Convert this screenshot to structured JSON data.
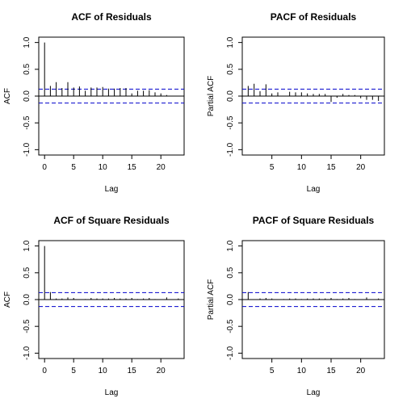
{
  "chart_data": [
    {
      "type": "bar",
      "title": "ACF of Residuals",
      "xlabel": "Lag",
      "ylabel": "ACF",
      "x": [
        0,
        1,
        2,
        3,
        4,
        5,
        6,
        7,
        8,
        9,
        10,
        11,
        12,
        13,
        14,
        15,
        16,
        17,
        18,
        19,
        20,
        21,
        22,
        23
      ],
      "values": [
        1.0,
        0.19,
        0.26,
        0.15,
        0.26,
        0.16,
        0.18,
        0.1,
        0.16,
        0.16,
        0.17,
        0.14,
        0.14,
        0.15,
        0.15,
        0.05,
        0.1,
        0.1,
        0.11,
        0.07,
        0.05,
        0.02,
        0.0,
        0.0
      ],
      "xlim": [
        -1,
        24
      ],
      "ylim": [
        -1.1,
        1.1
      ],
      "xticks": [
        0,
        5,
        10,
        15,
        20
      ],
      "yticks": [
        "-1.0",
        "-0.5",
        "0.0",
        "0.5",
        "1.0"
      ],
      "confidence_bound": 0.13,
      "grid": false
    },
    {
      "type": "bar",
      "title": "PACF of Residuals",
      "xlabel": "Lag",
      "ylabel": "Partial ACF",
      "x": [
        1,
        2,
        3,
        4,
        5,
        6,
        7,
        8,
        9,
        10,
        11,
        12,
        13,
        14,
        15,
        16,
        17,
        18,
        19,
        20,
        21,
        22,
        23
      ],
      "values": [
        0.19,
        0.23,
        0.09,
        0.22,
        0.05,
        0.07,
        0.0,
        0.08,
        0.07,
        0.07,
        0.05,
        0.04,
        0.04,
        0.04,
        -0.11,
        -0.03,
        0.04,
        0.02,
        0.02,
        -0.04,
        -0.07,
        -0.07,
        -0.09
      ],
      "xlim": [
        0,
        24
      ],
      "ylim": [
        -1.1,
        1.1
      ],
      "xticks": [
        5,
        10,
        15,
        20
      ],
      "yticks": [
        "-1.0",
        "-0.5",
        "0.0",
        "0.5",
        "1.0"
      ],
      "confidence_bound": 0.13,
      "grid": false
    },
    {
      "type": "bar",
      "title": "ACF of Square Residuals",
      "xlabel": "Lag",
      "ylabel": "ACF",
      "x": [
        0,
        1,
        2,
        3,
        4,
        5,
        6,
        7,
        8,
        9,
        10,
        11,
        12,
        13,
        14,
        15,
        16,
        17,
        18,
        19,
        20,
        21,
        22,
        23
      ],
      "values": [
        1.0,
        0.14,
        0.02,
        0.02,
        0.04,
        0.03,
        0.0,
        0.01,
        0.03,
        0.02,
        0.02,
        0.02,
        0.03,
        0.02,
        0.02,
        0.03,
        0.01,
        0.02,
        0.03,
        0.01,
        0.0,
        0.04,
        0.0,
        0.02
      ],
      "xlim": [
        -1,
        24
      ],
      "ylim": [
        -1.1,
        1.1
      ],
      "xticks": [
        0,
        5,
        10,
        15,
        20
      ],
      "yticks": [
        "-1.0",
        "-0.5",
        "0.0",
        "0.5",
        "1.0"
      ],
      "confidence_bound": 0.13,
      "grid": false
    },
    {
      "type": "bar",
      "title": "PACF of Square Residuals",
      "xlabel": "Lag",
      "ylabel": "Partial ACF",
      "x": [
        1,
        2,
        3,
        4,
        5,
        6,
        7,
        8,
        9,
        10,
        11,
        12,
        13,
        14,
        15,
        16,
        17,
        18,
        19,
        20,
        21,
        22,
        23
      ],
      "values": [
        0.14,
        0.0,
        0.02,
        0.03,
        0.02,
        0.0,
        0.01,
        0.02,
        0.02,
        0.01,
        0.02,
        0.02,
        0.02,
        0.02,
        0.03,
        0.01,
        0.02,
        0.03,
        0.01,
        0.0,
        0.04,
        0.0,
        0.02
      ],
      "xlim": [
        0,
        24
      ],
      "ylim": [
        -1.1,
        1.1
      ],
      "xticks": [
        5,
        10,
        15,
        20
      ],
      "yticks": [
        "-1.0",
        "-0.5",
        "0.0",
        "0.5",
        "1.0"
      ],
      "confidence_bound": 0.13,
      "grid": false
    }
  ],
  "colors": {
    "bars": "#000000",
    "confidence_lines": "#0000cc",
    "axes": "#000000"
  }
}
